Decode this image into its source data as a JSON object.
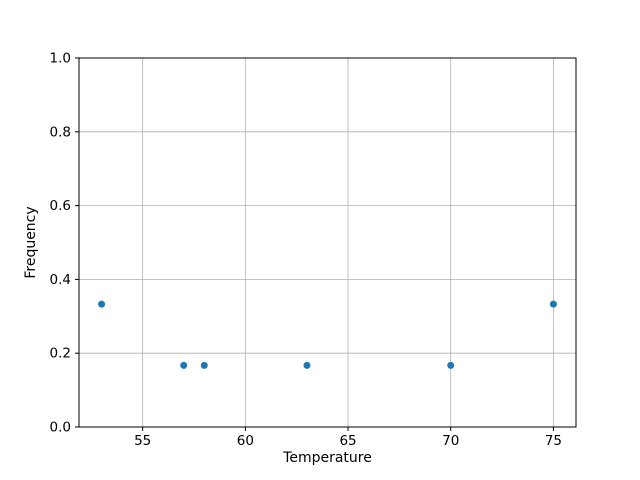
{
  "chart_data": {
    "type": "scatter",
    "title": "",
    "xlabel": "Temperature",
    "ylabel": "Frequency",
    "x": [
      53,
      57,
      58,
      63,
      70,
      75
    ],
    "y": [
      0.333,
      0.167,
      0.167,
      0.167,
      0.167,
      0.333
    ],
    "xlim": [
      51.9,
      76.1
    ],
    "ylim": [
      0.0,
      1.0
    ],
    "xticks": [
      55,
      60,
      65,
      70,
      75
    ],
    "xtick_labels": [
      "55",
      "60",
      "65",
      "70",
      "75"
    ],
    "yticks": [
      0.0,
      0.2,
      0.4,
      0.6,
      0.8,
      1.0
    ],
    "ytick_labels": [
      "0.0",
      "0.2",
      "0.4",
      "0.6",
      "0.8",
      "1.0"
    ],
    "grid": true,
    "legend": null,
    "marker_color": "#1f77b4",
    "grid_color": "#b0b0b0",
    "spine_color": "#000000"
  }
}
